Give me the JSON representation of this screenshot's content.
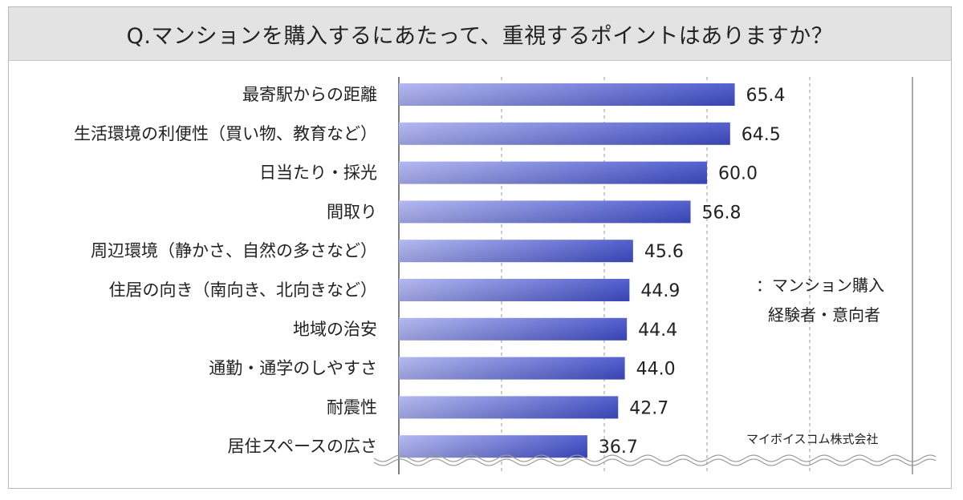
{
  "title": "Q.マンションを購入するにあたって、重視するポイントはありますか？",
  "legend": {
    "line1": "：マンション購入",
    "line2": "経験者・意向者"
  },
  "credit": "マイボイスコム株式会社",
  "colors": {
    "bar_light": "#aab0f0",
    "bar_dark": "#3e4cc8",
    "grid": "#9a9a9a",
    "axis": "#555555"
  },
  "chart_data": {
    "type": "bar",
    "orientation": "horizontal",
    "categories": [
      "最寄駅からの距離",
      "生活環境の利便性（買い物、教育など）",
      "日当たり・採光",
      "間取り",
      "周辺環境（静かさ、自然の多さなど）",
      "住居の向き（南向き、北向きなど）",
      "地域の治安",
      "通勤・通学のしやすさ",
      "耐震性",
      "居住スペースの広さ"
    ],
    "values": [
      65.4,
      64.5,
      60.0,
      56.8,
      45.6,
      44.9,
      44.4,
      44.0,
      42.7,
      36.7
    ],
    "value_labels": [
      "65.4",
      "64.5",
      "60.0",
      "56.8",
      "45.6",
      "44.9",
      "44.4",
      "44.0",
      "42.7",
      "36.7"
    ],
    "xlim": [
      0,
      100
    ],
    "gridlines": [
      20,
      40,
      60,
      80
    ],
    "grid": true,
    "axis_break_at_bottom": true
  }
}
